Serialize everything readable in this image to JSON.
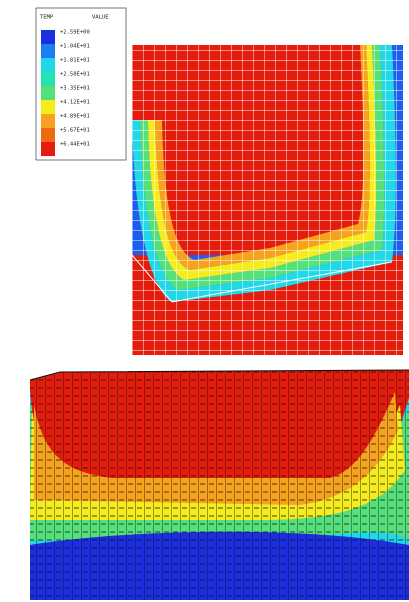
{
  "legend": {
    "header": [
      "TEMP",
      "VALUE"
    ],
    "values": [
      "+2.59E+00",
      "+1.04E+01",
      "+1.81E+01",
      "+2.58E+01",
      "+3.35E+01",
      "+4.12E+01",
      "+4.89E+01",
      "+5.67E+01",
      "+6.44E+01"
    ]
  }
}
